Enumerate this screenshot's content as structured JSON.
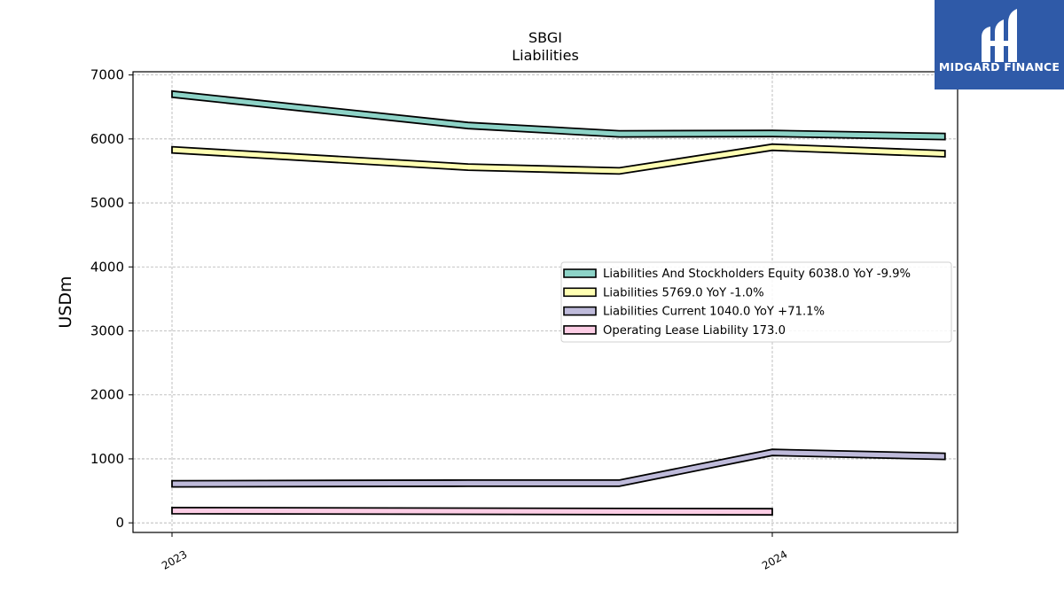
{
  "chart_data": {
    "type": "line",
    "title": "SBGI",
    "subtitle": "Liabilities",
    "xlabel": "",
    "ylabel": "USDm",
    "x_tick_labels": [
      "2023",
      "2024"
    ],
    "yticks": [
      0,
      1000,
      2000,
      3000,
      4000,
      5000,
      6000,
      7000
    ],
    "ylim": [
      -150,
      7050
    ],
    "grid": true,
    "legend_position": "center-right",
    "x": [
      "2023-01-01",
      "2023-06-30",
      "2023-09-30",
      "2024-01-01",
      "2024-04-15"
    ],
    "series": [
      {
        "name": "Liabilities And Stockholders Equity",
        "legend_label": "Liabilities And Stockholders Equity  6038.0 YoY -9.9%",
        "color": "#8dd3c7",
        "values": [
          6700,
          6210,
          6080,
          6085,
          6038
        ]
      },
      {
        "name": "Liabilities",
        "legend_label": "Liabilities  5769.0 YoY -1.0%",
        "color": "#ffffb3",
        "values": [
          5830,
          5560,
          5500,
          5870,
          5769
        ]
      },
      {
        "name": "Liabilities Current",
        "legend_label": "Liabilities Current  1040.0 YoY +71.1%",
        "color": "#bebada",
        "values": [
          610,
          620,
          620,
          1100,
          1040
        ]
      },
      {
        "name": "Operating Lease Liability",
        "legend_label": "Operating Lease Liability  173.0",
        "color": "#fccde5",
        "values": [
          190,
          null,
          null,
          173,
          null
        ]
      }
    ]
  },
  "logo": {
    "text": "MIDGARD FINANCE",
    "bg": "#2f5aa8"
  }
}
